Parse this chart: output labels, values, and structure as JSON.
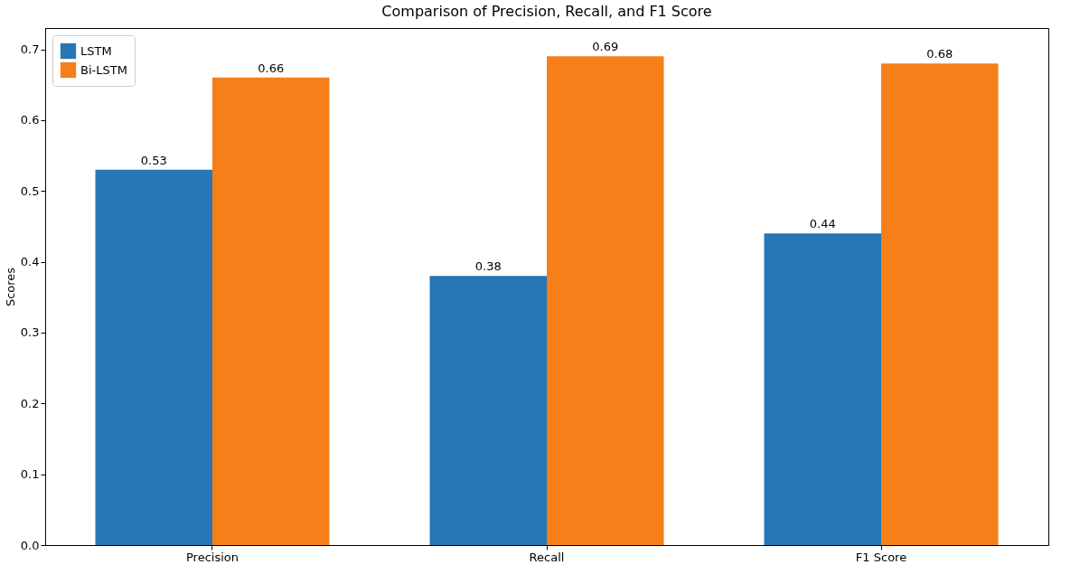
{
  "chart_data": {
    "type": "bar",
    "title": "Comparison of Precision, Recall, and F1 Score",
    "ylabel": "Scores",
    "categories": [
      "Precision",
      "Recall",
      "F1 Score"
    ],
    "series": [
      {
        "name": "LSTM",
        "color": "#2677b4",
        "values": [
          0.53,
          0.38,
          0.44
        ]
      },
      {
        "name": "Bi-LSTM",
        "color": "#f67f1a",
        "values": [
          0.66,
          0.69,
          0.68
        ]
      }
    ],
    "ylim": [
      0,
      0.73
    ],
    "yticks": [
      {
        "value": 0,
        "label": "0.0"
      },
      0.1,
      0.2,
      0.3,
      0.4,
      0.5,
      0.6,
      0.7
    ],
    "data_labels": true,
    "legend": "top left",
    "grid": false
  }
}
